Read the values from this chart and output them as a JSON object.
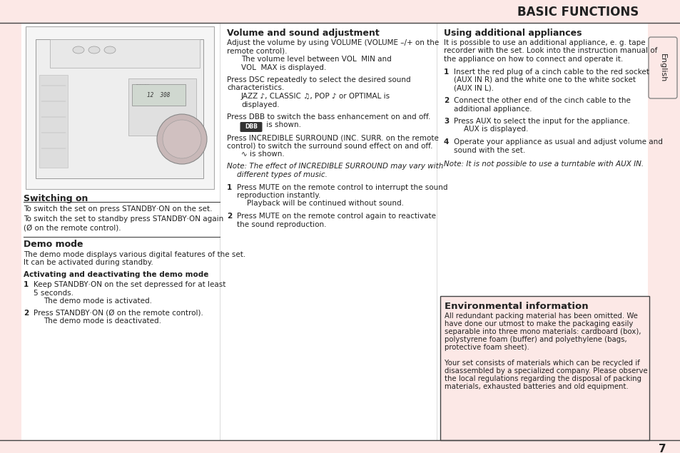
{
  "page_bg": "#fce8e6",
  "white_bg": "#ffffff",
  "env_box_bg": "#fce8e6",
  "header_text": "BASIC FUNCTIONS",
  "tab_text": "English",
  "page_number": "7",
  "border_color": "#222222",
  "text_color": "#222222",
  "line_color": "#888888"
}
